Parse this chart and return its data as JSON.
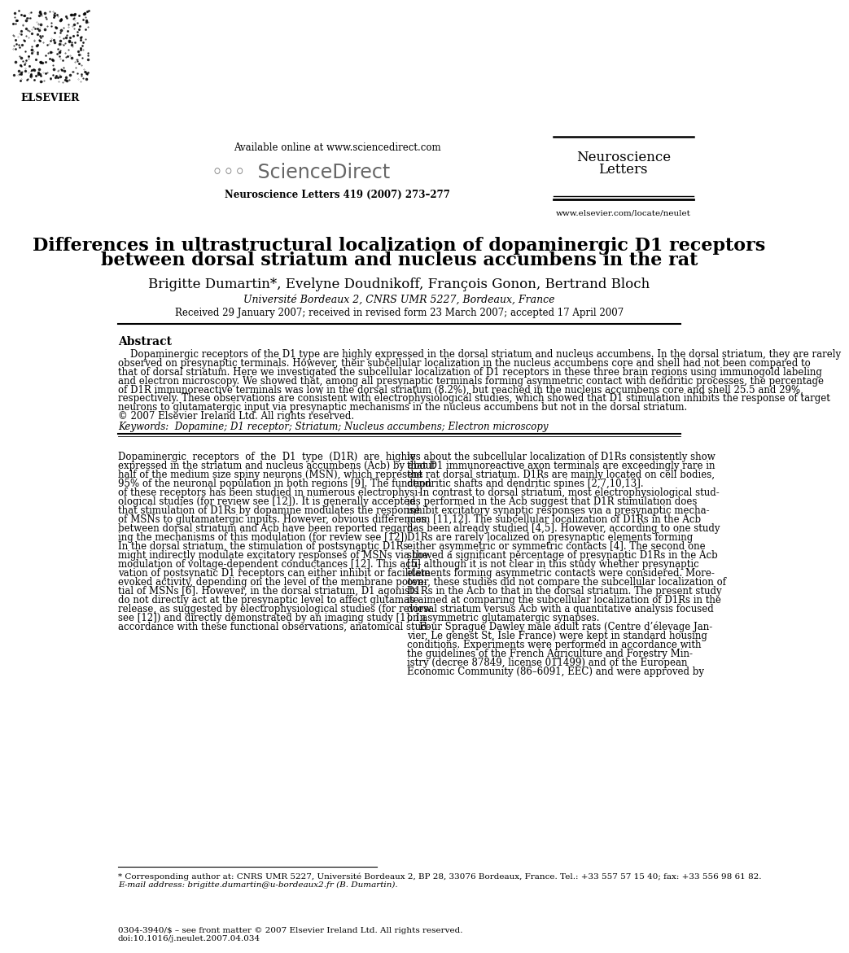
{
  "title_line1": "Differences in ultrastructural localization of dopaminergic D1 receptors",
  "title_line2": "between dorsal striatum and nucleus accumbens in the rat",
  "authors": "Brigitte Dumartin*, Evelyne Doudnikoff, François Gonon, Bertrand Bloch",
  "affiliation": "Université Bordeaux 2, CNRS UMR 5227, Bordeaux, France",
  "received": "Received 29 January 2007; received in revised form 23 March 2007; accepted 17 April 2007",
  "journal_header": "Available online at www.sciencedirect.com",
  "journal_name": "ScienceDirect",
  "journal_ref": "Neuroscience Letters 419 (2007) 273–277",
  "journal_title_l1": "Neuroscience",
  "journal_title_l2": "Letters",
  "journal_url": "www.elsevier.com/locate/neulet",
  "elsevier": "ELSEVIER",
  "abstract_title": "Abstract",
  "keywords": "Keywords:  Dopamine; D1 receptor; Striatum; Nucleus accumbens; Electron microscopy",
  "footnote1": "* Corresponding author at: CNRS UMR 5227, Université Bordeaux 2, BP 28, 33076 Bordeaux, France. Tel.: +33 557 57 15 40; fax: +33 556 98 61 82.",
  "footnote2": "E-mail address: brigitte.dumartin@u-bordeaux2.fr (B. Dumartin).",
  "footer_left_l1": "0304-3940/$ – see front matter © 2007 Elsevier Ireland Ltd. All rights reserved.",
  "footer_left_l2": "doi:10.1016/j.neulet.2007.04.034",
  "bg_color": "#ffffff",
  "abstract_lines": [
    "    Dopaminergic receptors of the D1 type are highly expressed in the dorsal striatum and nucleus accumbens. In the dorsal striatum, they are rarely",
    "observed on presynaptic terminals. However, their subcellular localization in the nucleus accumbens core and shell had not been compared to",
    "that of dorsal striatum. Here we investigated the subcellular localization of D1 receptors in these three brain regions using immunogold labeling",
    "and electron microscopy. We showed that, among all presynaptic terminals forming asymmetric contact with dendritic processes, the percentage",
    "of D1R immunoreactive terminals was low in the dorsal striatum (8.2%), but reached in the nucleus accumbens core and shell 25.5 and 29%,",
    "respectively. These observations are consistent with electrophysiological studies, which showed that D1 stimulation inhibits the response of target",
    "neurons to glutamatergic input via presynaptic mechanisms in the nucleus accumbens but not in the dorsal striatum.",
    "© 2007 Elsevier Ireland Ltd. All rights reserved."
  ],
  "col1_lines": [
    "Dopaminergic  receptors  of  the  D1  type  (D1R)  are  highly",
    "expressed in the striatum and nucleus accumbens (Acb) by about",
    "half of the medium size spiny neurons (MSN), which represent",
    "95% of the neuronal population in both regions [9]. The function",
    "of these receptors has been studied in numerous electrophysi-",
    "ological studies (for review see [12]). It is generally accepted",
    "that stimulation of D1Rs by dopamine modulates the response",
    "of MSNs to glutamatergic inputs. However, obvious differences",
    "between dorsal striatum and Acb have been reported regard-",
    "ing the mechanisms of this modulation (for review see [12]).",
    "In the dorsal striatum, the stimulation of postsynaptic D1Rs",
    "might indirectly modulate excitatory responses of MSNs via the",
    "modulation of voltage-dependent conductances [12]. This acti-",
    "vation of postsynatic D1 receptors can either inhibit or facilitate",
    "evoked activity, depending on the level of the membrane poten-",
    "tial of MSNs [6]. However, in the dorsal striatum, D1 agonists",
    "do not directly act at the presynaptic level to affect glutamate",
    "release, as suggested by electrophysiological studies (for review",
    "see [12]) and directly demonstrated by an imaging study [1]. In",
    "accordance with these functional observations, anatomical stud-"
  ],
  "col2_lines": [
    "ies about the subcellular localization of D1Rs consistently show",
    "that D1 immunoreactive axon terminals are exceedingly rare in",
    "the rat dorsal striatum. D1Rs are mainly located on cell bodies,",
    "dendritic shafts and dendritic spines [2,7,10,13].",
    "    In contrast to dorsal striatum, most electrophysiological stud-",
    "ies performed in the Acb suggest that D1R stimulation does",
    "inhibit excitatory synaptic responses via a presynaptic mecha-",
    "nism [11,12]. The subcellular localization of D1Rs in the Acb",
    "has been already studied [4,5]. However, according to one study",
    "D1Rs are rarely localized on presynaptic elements forming",
    "either asymmetric or symmetric contacts [4]. The second one",
    "showed a significant percentage of presynaptic D1Rs in the Acb",
    "[5] although it is not clear in this study whether presynaptic",
    "elements forming asymmetric contacts were considered. More-",
    "over, these studies did not compare the subcellular localization of",
    "D1Rs in the Acb to that in the dorsal striatum. The present study",
    "is aimed at comparing the subcellular localization of D1Rs in the",
    "dorsal striatum versus Acb with a quantitative analysis focused",
    "on asymmetric glutamatergic synapses.",
    "    Four Sprague Dawley male adult rats (Centre d’élevage Jan-",
    "vier, Le genest St, Isle France) were kept in standard housing",
    "conditions. Experiments were performed in accordance with",
    "the guidelines of the French Agriculture and Forestry Min-",
    "istry (decree 87849, license 011499) and of the European",
    "Economic Community (86–6091, EEC) and were approved by"
  ]
}
